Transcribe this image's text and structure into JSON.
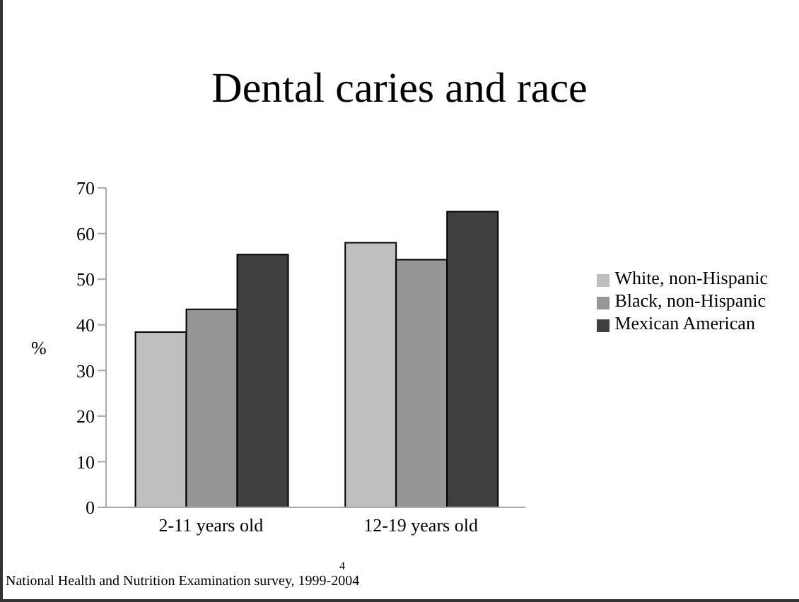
{
  "chart_data": {
    "type": "bar",
    "title": "Dental caries and race",
    "ylabel": "%",
    "categories": [
      "2-11 years old",
      "12-19 years old"
    ],
    "series": [
      {
        "name": "White, non-Hispanic",
        "color": "#bfbfbf",
        "values": [
          38.4,
          58.0
        ]
      },
      {
        "name": "Black, non-Hispanic",
        "color": "#969696",
        "values": [
          43.4,
          54.3
        ]
      },
      {
        "name": "Mexican American",
        "color": "#404040",
        "values": [
          55.4,
          64.8
        ]
      }
    ],
    "ylim": [
      0,
      70
    ],
    "yticks": [
      0,
      10,
      20,
      30,
      40,
      50,
      60,
      70
    ],
    "grid": false,
    "legend": "right",
    "annotations": [
      "National Health and Nutrition Examination survey, 1999-2004",
      "4"
    ]
  }
}
